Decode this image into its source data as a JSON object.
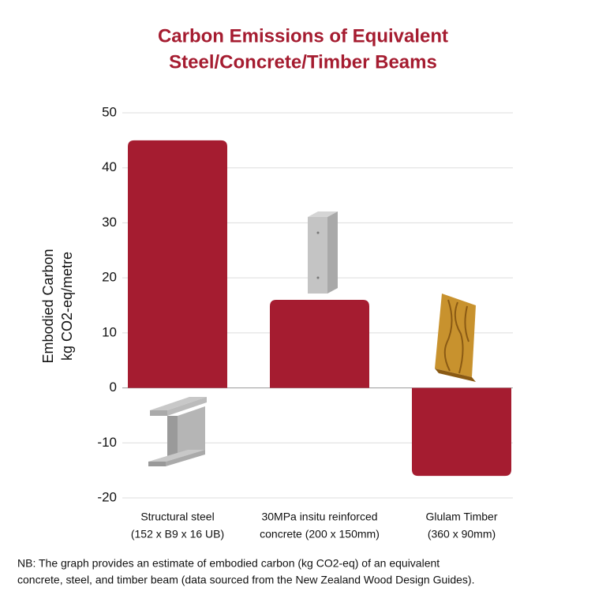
{
  "chart_data": {
    "type": "bar",
    "title": [
      "Carbon Emissions of Equivalent",
      "Steel/Concrete/Timber Beams"
    ],
    "y_label": [
      "Embodied Carbon",
      "kg CO2-eq/metre"
    ],
    "categories": [
      [
        "Structural steel",
        "(152 x B9 x 16 UB)"
      ],
      [
        "30MPa insitu reinforced",
        "concrete (200 x 150mm)"
      ],
      [
        "Glulam Timber",
        "(360 x 90mm)"
      ]
    ],
    "values": [
      45,
      16,
      -16
    ],
    "color": "#a51c30",
    "ylim": [
      -20,
      50
    ],
    "yticks": [
      -20,
      -10,
      0,
      10,
      20,
      30,
      40,
      50
    ],
    "grid": true,
    "note": [
      "NB: The graph provides an estimate of embodied carbon  (kg CO2-eq) of an equivalent",
      "concrete, steel, and timber beam (data sourced from the New Zealand Wood Design Guides)."
    ]
  }
}
